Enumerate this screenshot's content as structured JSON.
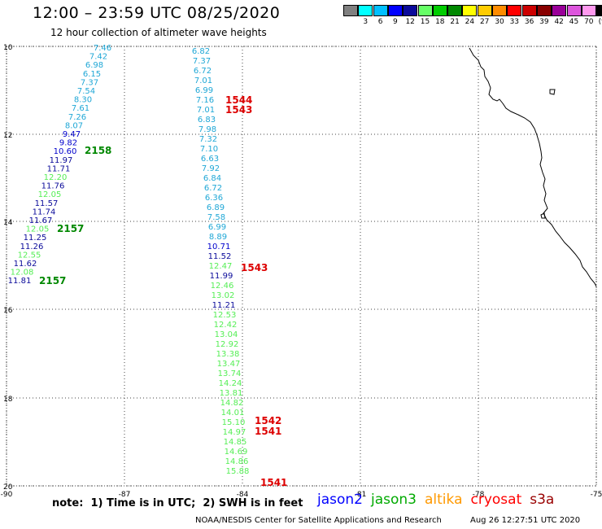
{
  "title": "12:00 – 23:59 UTC 08/25/2020",
  "subtitle": "12 hour collection of altimeter wave heights",
  "legend": {
    "unit": "(ft)",
    "swatches": [
      {
        "color": "#808080",
        "label": ""
      },
      {
        "color": "#00ffff",
        "label": "3"
      },
      {
        "color": "#00bfff",
        "label": "6"
      },
      {
        "color": "#0000ff",
        "label": "9"
      },
      {
        "color": "#0a0a9a",
        "label": "12"
      },
      {
        "color": "#66ff66",
        "label": "15"
      },
      {
        "color": "#00cc00",
        "label": "18"
      },
      {
        "color": "#008800",
        "label": "21"
      },
      {
        "color": "#ffff00",
        "label": "24"
      },
      {
        "color": "#ffcc00",
        "label": "27"
      },
      {
        "color": "#ff8c00",
        "label": "30"
      },
      {
        "color": "#ff0000",
        "label": "33"
      },
      {
        "color": "#cc0000",
        "label": "36"
      },
      {
        "color": "#880000",
        "label": "39"
      },
      {
        "color": "#990099",
        "label": "42"
      },
      {
        "color": "#dd55dd",
        "label": "45"
      },
      {
        "color": "#ff99ee",
        "label": "70"
      },
      {
        "color": "#000000",
        "label": ""
      }
    ]
  },
  "axes": {
    "lat_ticks": [
      "10",
      "12",
      "14",
      "16",
      "18",
      "20"
    ],
    "lon_ticks": [
      "-90",
      "-87",
      "-84",
      "-81",
      "-78",
      "-75"
    ]
  },
  "track_left": {
    "readings": [
      {
        "v": "7.46",
        "c": "#1fa7d6"
      },
      {
        "v": "7.42",
        "c": "#1fa7d6"
      },
      {
        "v": "6.98",
        "c": "#1fa7d6"
      },
      {
        "v": "6.15",
        "c": "#1fa7d6"
      },
      {
        "v": "7.37",
        "c": "#1fa7d6"
      },
      {
        "v": "7.54",
        "c": "#1fa7d6"
      },
      {
        "v": "8.30",
        "c": "#1fa7d6"
      },
      {
        "v": "7.61",
        "c": "#1fa7d6"
      },
      {
        "v": "7.26",
        "c": "#1fa7d6"
      },
      {
        "v": "8.07",
        "c": "#1fa7d6"
      },
      {
        "v": "9.47",
        "c": "#0000cc"
      },
      {
        "v": "9.82",
        "c": "#0000cc"
      },
      {
        "v": "10.60",
        "c": "#0000cc"
      },
      {
        "v": "11.97",
        "c": "#0a0a9a"
      },
      {
        "v": "11.71",
        "c": "#0a0a9a"
      },
      {
        "v": "12.20",
        "c": "#55ee55"
      },
      {
        "v": "11.76",
        "c": "#0a0a9a"
      },
      {
        "v": "12.05",
        "c": "#55ee55"
      },
      {
        "v": "11.57",
        "c": "#0a0a9a"
      },
      {
        "v": "11.74",
        "c": "#0a0a9a"
      },
      {
        "v": "11.67",
        "c": "#0a0a9a"
      },
      {
        "v": "12.05",
        "c": "#55ee55"
      },
      {
        "v": "11.25",
        "c": "#0a0a9a"
      },
      {
        "v": "11.26",
        "c": "#0a0a9a"
      },
      {
        "v": "12.55",
        "c": "#55ee55"
      },
      {
        "v": "11.62",
        "c": "#0a0a9a"
      },
      {
        "v": "12.08",
        "c": "#55ee55"
      },
      {
        "v": "11.81",
        "c": "#0a0a9a"
      }
    ]
  },
  "track_right": {
    "readings": [
      {
        "v": "6.82",
        "c": "#1fa7d6"
      },
      {
        "v": "7.37",
        "c": "#1fa7d6"
      },
      {
        "v": "6.72",
        "c": "#1fa7d6"
      },
      {
        "v": "7.01",
        "c": "#1fa7d6"
      },
      {
        "v": "6.99",
        "c": "#1fa7d6"
      },
      {
        "v": "7.16",
        "c": "#1fa7d6"
      },
      {
        "v": "7.01",
        "c": "#1fa7d6"
      },
      {
        "v": "6.83",
        "c": "#1fa7d6"
      },
      {
        "v": "7.98",
        "c": "#1fa7d6"
      },
      {
        "v": "7.32",
        "c": "#1fa7d6"
      },
      {
        "v": "7.10",
        "c": "#1fa7d6"
      },
      {
        "v": "6.63",
        "c": "#1fa7d6"
      },
      {
        "v": "7.92",
        "c": "#1fa7d6"
      },
      {
        "v": "6.84",
        "c": "#1fa7d6"
      },
      {
        "v": "6.72",
        "c": "#1fa7d6"
      },
      {
        "v": "6.36",
        "c": "#1fa7d6"
      },
      {
        "v": "6.89",
        "c": "#1fa7d6"
      },
      {
        "v": "7.58",
        "c": "#1fa7d6"
      },
      {
        "v": "6.99",
        "c": "#1fa7d6"
      },
      {
        "v": "8.89",
        "c": "#1fa7d6"
      },
      {
        "v": "10.71",
        "c": "#0000cc"
      },
      {
        "v": "11.52",
        "c": "#0a0a9a"
      },
      {
        "v": "12.47",
        "c": "#55ee55"
      },
      {
        "v": "11.99",
        "c": "#0a0a9a"
      },
      {
        "v": "12.46",
        "c": "#55ee55"
      },
      {
        "v": "13.02",
        "c": "#55ee55"
      },
      {
        "v": "11.21",
        "c": "#0a0a9a"
      },
      {
        "v": "12.53",
        "c": "#55ee55"
      },
      {
        "v": "12.42",
        "c": "#55ee55"
      },
      {
        "v": "13.04",
        "c": "#55ee55"
      },
      {
        "v": "12.92",
        "c": "#55ee55"
      },
      {
        "v": "13.38",
        "c": "#55ee55"
      },
      {
        "v": "13.47",
        "c": "#55ee55"
      },
      {
        "v": "13.74",
        "c": "#55ee55"
      },
      {
        "v": "14.24",
        "c": "#55ee55"
      },
      {
        "v": "13.81",
        "c": "#55ee55"
      },
      {
        "v": "14.82",
        "c": "#55ee55"
      },
      {
        "v": "14.01",
        "c": "#55ee55"
      },
      {
        "v": "15.10",
        "c": "#55ee55"
      },
      {
        "v": "14.97",
        "c": "#55ee55"
      },
      {
        "v": "14.85",
        "c": "#55ee55"
      },
      {
        "v": "14.69",
        "c": "#55ee55"
      },
      {
        "v": "14.86",
        "c": "#55ee55"
      },
      {
        "v": "15.88",
        "c": "#55ee55"
      }
    ]
  },
  "time_labels": [
    {
      "t": "2158",
      "c": "#008800"
    },
    {
      "t": "2157",
      "c": "#008800"
    },
    {
      "t": "2157",
      "c": "#008800"
    },
    {
      "t": "1544",
      "c": "#dd0000"
    },
    {
      "t": "1543",
      "c": "#dd0000"
    },
    {
      "t": "1543",
      "c": "#dd0000"
    },
    {
      "t": "1542",
      "c": "#dd0000"
    },
    {
      "t": "1541",
      "c": "#dd0000"
    },
    {
      "t": "1541",
      "c": "#dd0000"
    }
  ],
  "footer": {
    "note": "note:  1) Time is in UTC;  2) SWH is in feet",
    "satellites": [
      {
        "name": "jason2",
        "color": "#0000ff"
      },
      {
        "name": "jason3",
        "color": "#00aa00"
      },
      {
        "name": "altika",
        "color": "#ff9900"
      },
      {
        "name": "cryosat",
        "color": "#ff0000"
      },
      {
        "name": "s3a",
        "color": "#990000"
      }
    ],
    "credit": "NOAA/NESDIS Center for Satellite Applications and Research",
    "timestamp": "Aug 26 12:27:51 UTC 2020"
  }
}
